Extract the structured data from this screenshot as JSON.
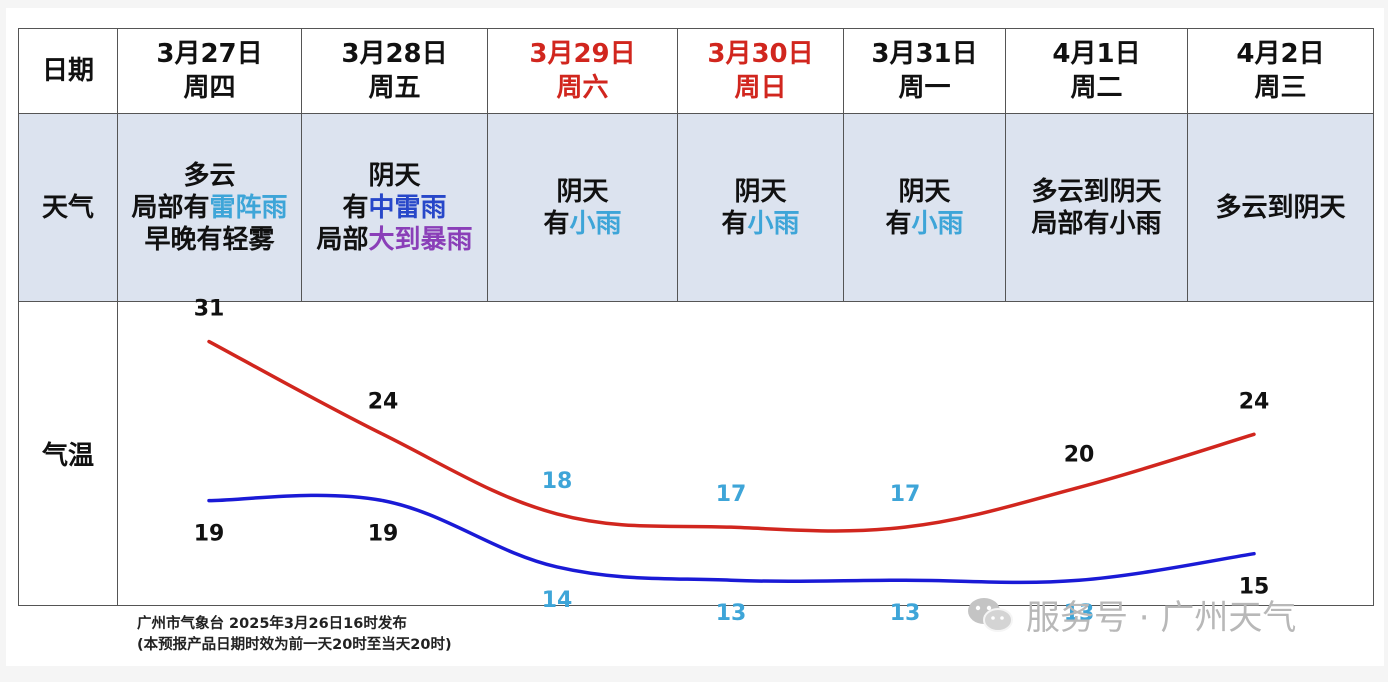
{
  "row_headers": {
    "date": "日期",
    "weather": "天气",
    "temperature": "气温"
  },
  "days": [
    {
      "date": "3月27日",
      "weekday": "周四",
      "weekend": false,
      "weather_lines": [
        [
          {
            "text": "多云",
            "color": "default"
          }
        ],
        [
          {
            "text": "局部有",
            "color": "default"
          },
          {
            "text": "雷阵雨",
            "color": "cyan"
          }
        ],
        [
          {
            "text": "早晚有轻雾",
            "color": "default"
          }
        ]
      ]
    },
    {
      "date": "3月28日",
      "weekday": "周五",
      "weekend": false,
      "weather_lines": [
        [
          {
            "text": "阴天",
            "color": "default"
          }
        ],
        [
          {
            "text": "有",
            "color": "default"
          },
          {
            "text": "中雷雨",
            "color": "blue"
          }
        ],
        [
          {
            "text": "局部",
            "color": "default"
          },
          {
            "text": "大到暴雨",
            "color": "purple"
          }
        ]
      ]
    },
    {
      "date": "3月29日",
      "weekday": "周六",
      "weekend": true,
      "weather_lines": [
        [
          {
            "text": "阴天",
            "color": "default"
          }
        ],
        [
          {
            "text": "有",
            "color": "default"
          },
          {
            "text": "小雨",
            "color": "cyan"
          }
        ]
      ]
    },
    {
      "date": "3月30日",
      "weekday": "周日",
      "weekend": true,
      "weather_lines": [
        [
          {
            "text": "阴天",
            "color": "default"
          }
        ],
        [
          {
            "text": "有",
            "color": "default"
          },
          {
            "text": "小雨",
            "color": "cyan"
          }
        ]
      ]
    },
    {
      "date": "3月31日",
      "weekday": "周一",
      "weekend": false,
      "weather_lines": [
        [
          {
            "text": "阴天",
            "color": "default"
          }
        ],
        [
          {
            "text": "有",
            "color": "default"
          },
          {
            "text": "小雨",
            "color": "cyan"
          }
        ]
      ]
    },
    {
      "date": "4月1日",
      "weekday": "周二",
      "weekend": false,
      "weather_lines": [
        [
          {
            "text": "多云到阴天",
            "color": "default"
          }
        ],
        [
          {
            "text": "局部有小雨",
            "color": "default"
          }
        ]
      ]
    },
    {
      "date": "4月2日",
      "weekday": "周三",
      "weekend": false,
      "weather_lines": [
        [
          {
            "text": "多云到阴天",
            "color": "default"
          }
        ]
      ]
    }
  ],
  "colors": {
    "weekend_text": "#d1261e",
    "cyan": "#3ea5d8",
    "blue": "#2747c9",
    "purple": "#8a3fb8",
    "high_line": "#d1261e",
    "low_line": "#1a1ad6",
    "label_dark": "#111111",
    "label_cyan": "#3ea5d8",
    "weather_bg": "#dce3ef"
  },
  "chart_data": {
    "type": "line",
    "categories": [
      "3月27日",
      "3月28日",
      "3月29日",
      "3月30日",
      "3月31日",
      "4月1日",
      "4月2日"
    ],
    "series": [
      {
        "values": [
          31,
          24,
          18,
          17,
          17,
          20,
          24
        ],
        "label_colors": [
          "dark",
          "dark",
          "cyan",
          "cyan",
          "cyan",
          "dark",
          "dark"
        ]
      },
      {
        "values": [
          19,
          19,
          14,
          13,
          13,
          13,
          15
        ],
        "label_colors": [
          "dark",
          "dark",
          "cyan",
          "cyan",
          "cyan",
          "cyan",
          "dark"
        ]
      }
    ],
    "ylim": [
      10,
      33
    ],
    "grid": false,
    "legend": "none"
  },
  "footer": {
    "line1": "广州市气象台 2025年3月26日16时发布",
    "line2": "(本预报产品日期时效为前一天20时至当天20时)"
  },
  "watermark": {
    "text": "服务号 · 广州天气",
    "icon": "wechat-icon"
  }
}
